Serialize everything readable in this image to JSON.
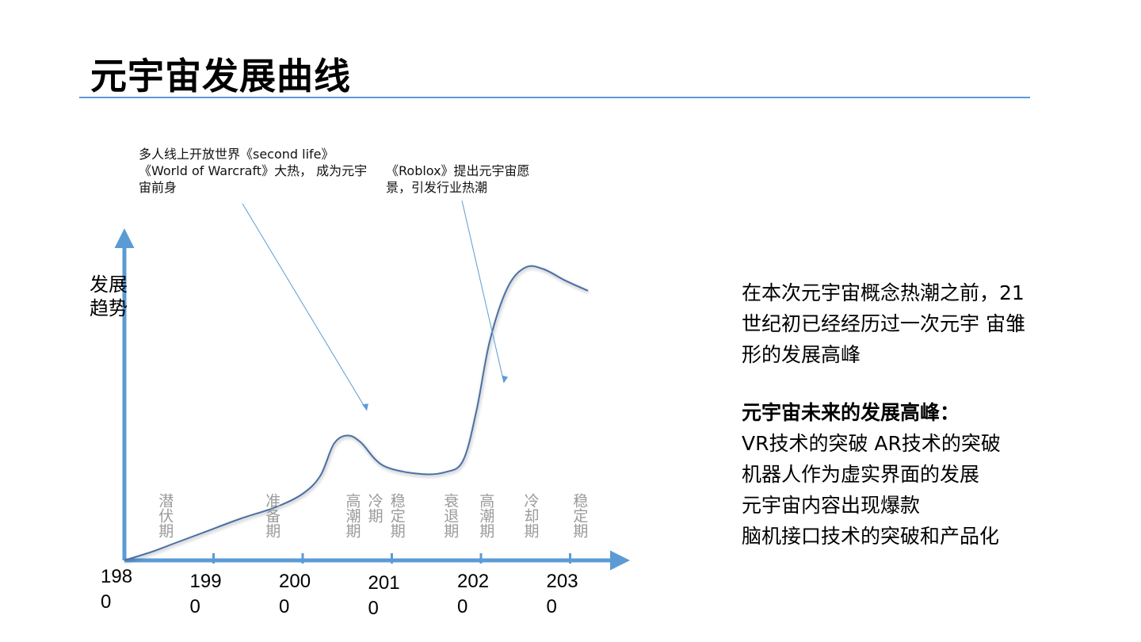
{
  "slide": {
    "title": "元宇宙发展曲线",
    "side_text": {
      "intro": "在本次元宇宙概念热潮之前，21世纪初已经经历过一次元宇 宙雏形的发展高峰",
      "future_heading": "元宇宙未来的发展高峰：",
      "future_items": [
        "VR技术的突破  AR技术的突破",
        "机器人作为虚实界面的发展",
        "元宇宙内容出现爆款",
        "脑机接口技术的突破和产品化"
      ]
    }
  },
  "chart_data": {
    "type": "line",
    "ylabel": "发展趋势",
    "xlabel": "",
    "x_ticks": [
      "1980",
      "1990",
      "2000",
      "2010",
      "2020",
      "2030"
    ],
    "xlim": [
      1980,
      2034
    ],
    "ylim": [
      0,
      100
    ],
    "grid": false,
    "line_color": "#4a6fa5",
    "axis_color": "#5b9bd5",
    "curve": [
      {
        "x": 1980,
        "y": 0
      },
      {
        "x": 1983,
        "y": 5
      },
      {
        "x": 1985.5,
        "y": 10
      },
      {
        "x": 1989,
        "y": 17
      },
      {
        "x": 1993,
        "y": 25
      },
      {
        "x": 1997,
        "y": 32
      },
      {
        "x": 2000,
        "y": 40
      },
      {
        "x": 2002,
        "y": 51
      },
      {
        "x": 2003.5,
        "y": 70
      },
      {
        "x": 2005,
        "y": 75
      },
      {
        "x": 2006.5,
        "y": 71
      },
      {
        "x": 2009,
        "y": 57
      },
      {
        "x": 2013,
        "y": 52
      },
      {
        "x": 2016,
        "y": 53
      },
      {
        "x": 2018,
        "y": 60
      },
      {
        "x": 2019.5,
        "y": 90
      },
      {
        "x": 2021,
        "y": 132
      },
      {
        "x": 2023,
        "y": 164
      },
      {
        "x": 2025,
        "y": 176
      },
      {
        "x": 2027,
        "y": 175
      },
      {
        "x": 2029.5,
        "y": 168
      },
      {
        "x": 2032,
        "y": 162
      }
    ],
    "periods": [
      {
        "label": "潜伏期",
        "x": 1985
      },
      {
        "label": "准备期",
        "x": 1997
      },
      {
        "label": "高潮期",
        "x": 2006
      },
      {
        "label": "冷期",
        "x": 2008.5
      },
      {
        "label": "稳定期",
        "x": 2011
      },
      {
        "label": "衰退期",
        "x": 2017
      },
      {
        "label": "高潮期",
        "x": 2021
      },
      {
        "label": "冷却期",
        "x": 2026
      },
      {
        "label": "稳定期",
        "x": 2031.5
      }
    ],
    "annotations": [
      {
        "text": "多人线上开放世界《second life》《World of Warcraft》大热，  成为元宇宙前身",
        "target_x": 2005.5
      },
      {
        "text": "《Roblox》提出元宇宙愿景，引发行业热潮",
        "target_x": 2020.5
      }
    ]
  }
}
